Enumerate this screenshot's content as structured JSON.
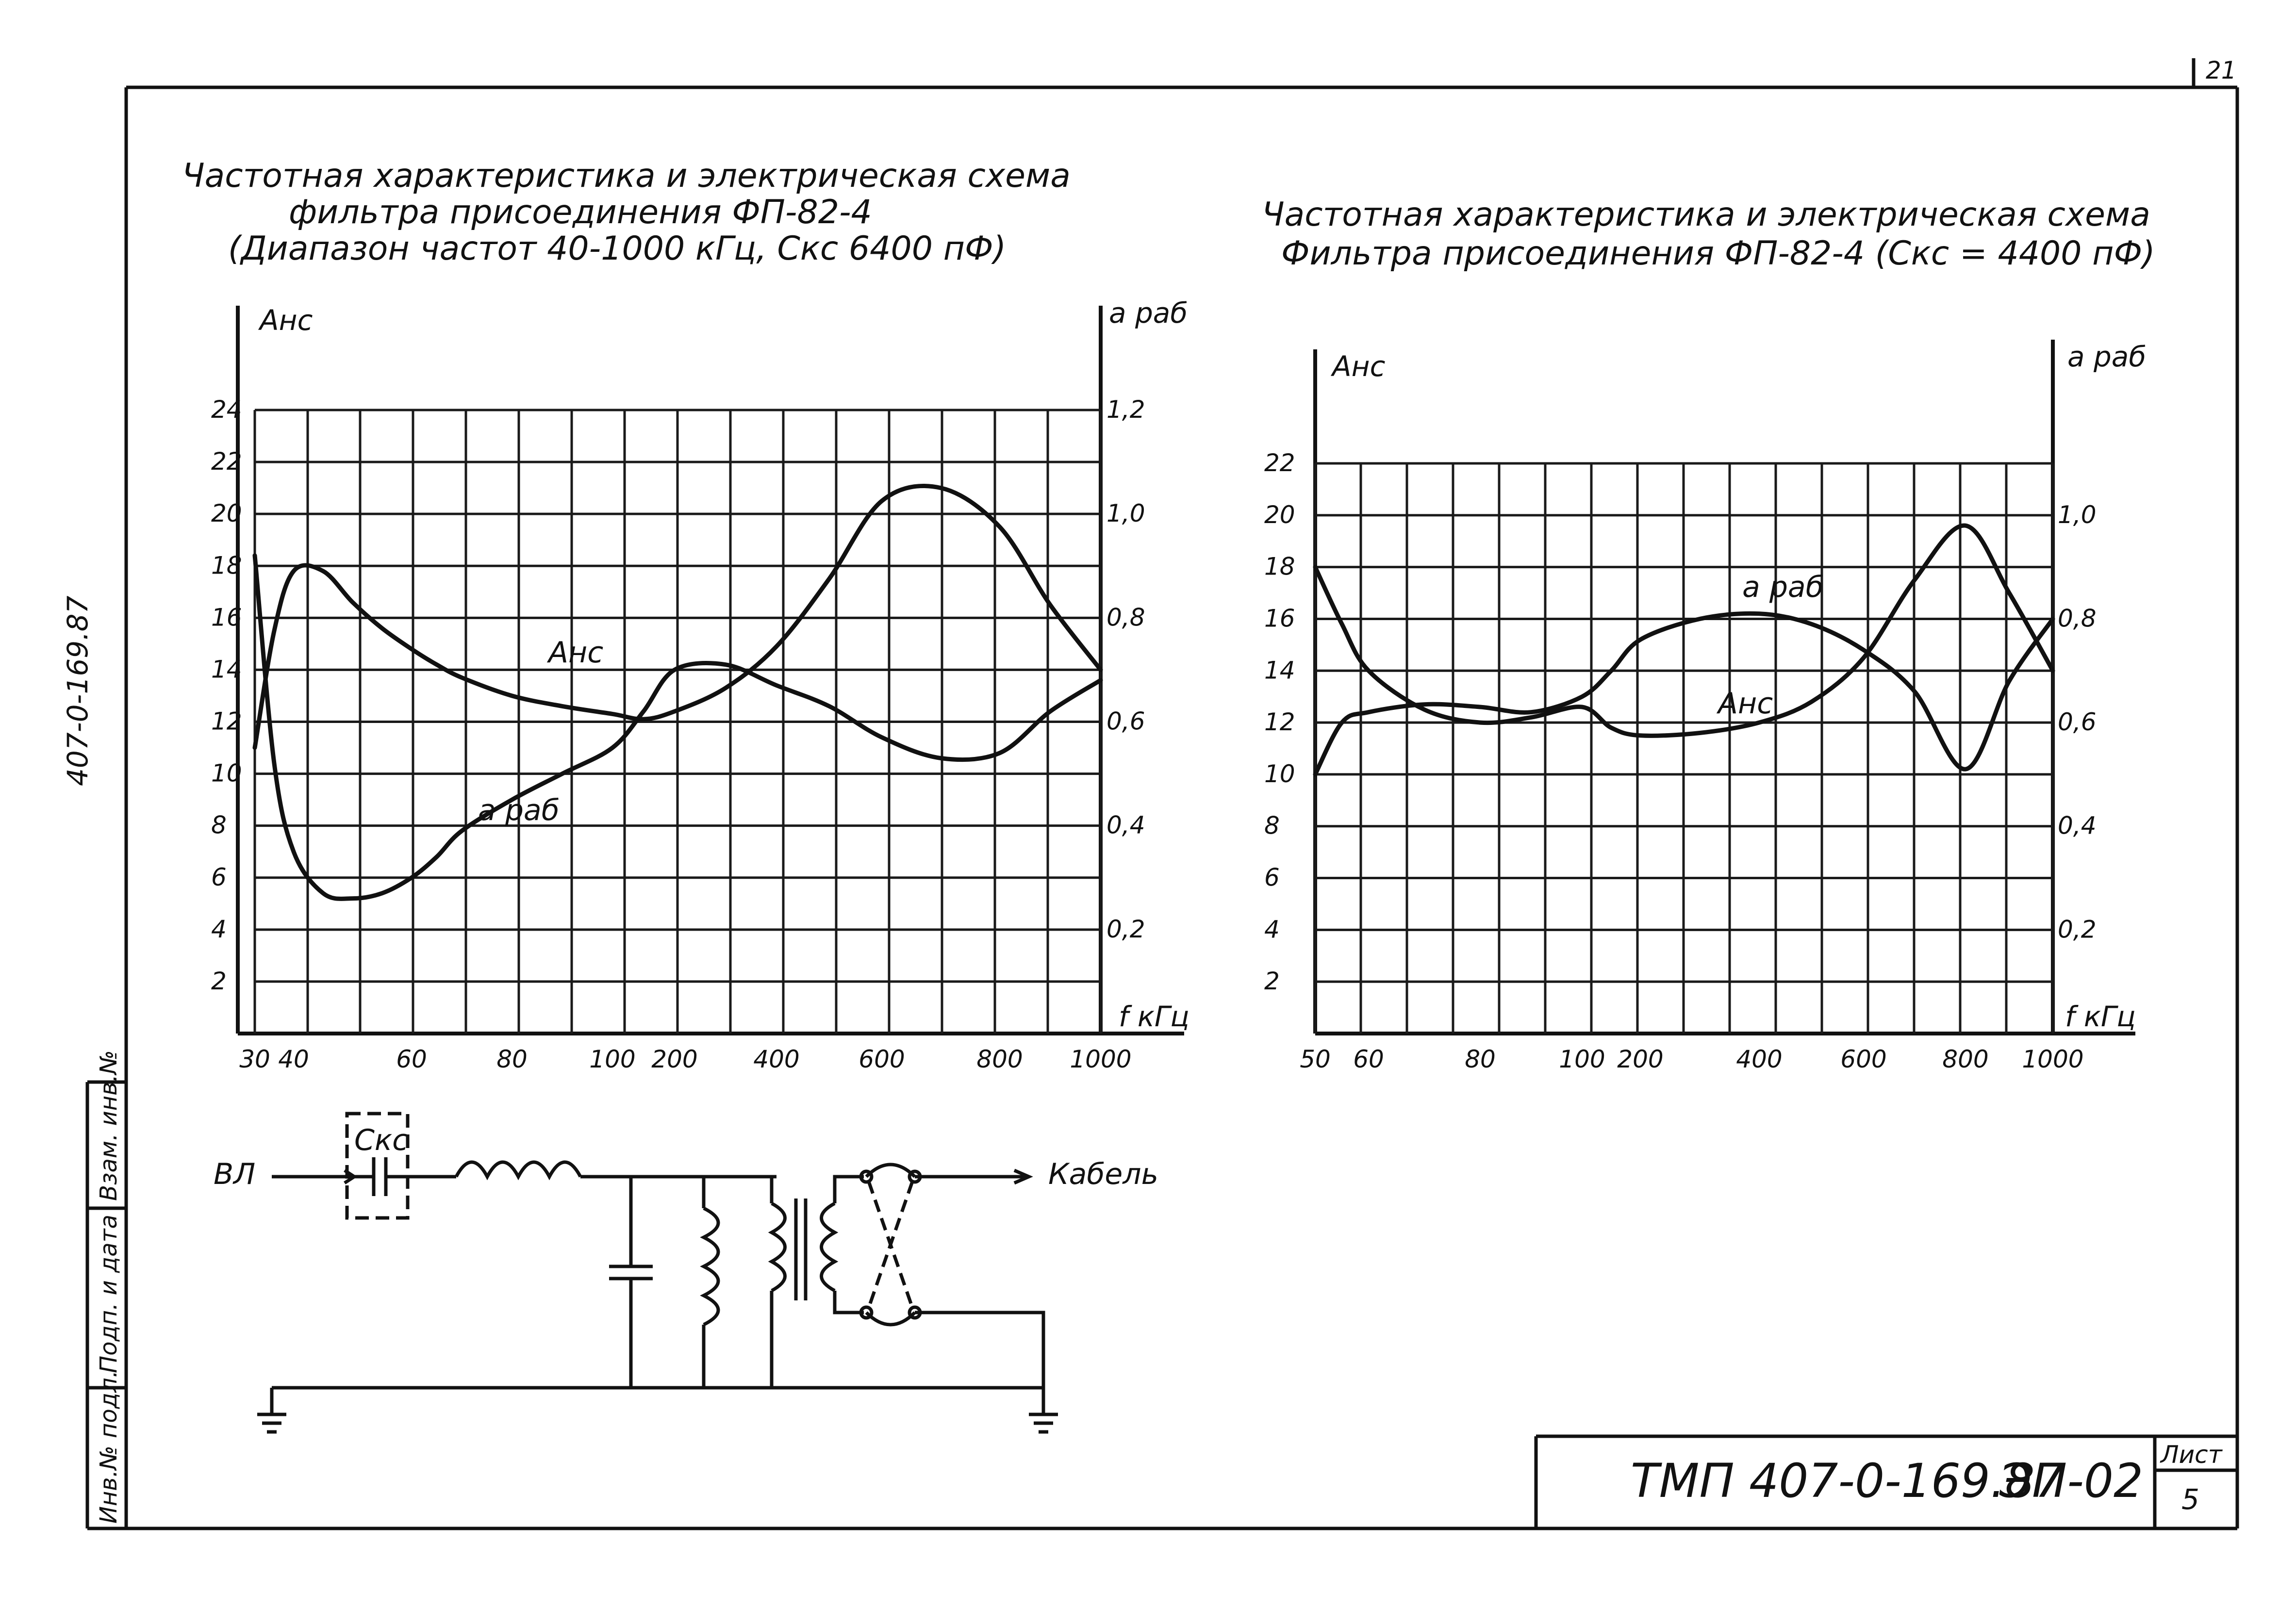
{
  "drawing": {
    "sheet_number_corner": "21",
    "side_code": "407-0-169.87",
    "side_stamps": [
      "Инв.№ подл.",
      "Подп. и дата",
      "Взам. инв.№"
    ],
    "title_block": {
      "code": "ТМП 407-0-169.87",
      "mark": "ЭП-02",
      "sheet_label": "Лист",
      "sheet_number": "5"
    }
  },
  "colors": {
    "ink": "#111111",
    "paper": "#ffffff"
  },
  "chart_data": [
    {
      "type": "line",
      "title_lines": [
        "Частотная характеристика и электрическая схема",
        "фильтра присоединения ФП-82-4",
        "(Диапазон частот 40-1000 кГц, Скс 6400 пФ)"
      ],
      "ylabel_left": "Анс",
      "ylabel_right": "a раб",
      "xlabel": "f кГц",
      "x_ticks": [
        "30",
        "40",
        "60",
        "80",
        "100",
        "200",
        "400",
        "600",
        "800",
        "1000"
      ],
      "y_left_ticks": [
        "2",
        "4",
        "6",
        "8",
        "10",
        "12",
        "14",
        "16",
        "18",
        "20",
        "22",
        "24"
      ],
      "y_right_ticks": [
        "0,2",
        "0,4",
        "0,6",
        "0,8",
        "1,0",
        "1,2"
      ],
      "ylim_left": [
        0,
        24
      ],
      "ylim_right": [
        0,
        1.2
      ],
      "grid": true,
      "series": [
        {
          "name": "Анс",
          "axis": "left",
          "x": [
            "30",
            "35",
            "40",
            "45",
            "50",
            "55",
            "60",
            "65",
            "70",
            "80",
            "90",
            "100",
            "150",
            "200",
            "300",
            "400",
            "500",
            "600",
            "700",
            "800",
            "900",
            "1000"
          ],
          "y": [
            11.0,
            15.5,
            17.8,
            17.8,
            16.6,
            15.6,
            14.8,
            14.2,
            13.7,
            13.0,
            12.6,
            12.3,
            12.1,
            12.4,
            13.3,
            14.9,
            17.5,
            20.5,
            21.0,
            19.5,
            16.5,
            14.0
          ]
        },
        {
          "name": "a раб",
          "axis": "right",
          "x": [
            "30",
            "35",
            "40",
            "45",
            "50",
            "55",
            "60",
            "65",
            "70",
            "80",
            "90",
            "100",
            "150",
            "200",
            "300",
            "400",
            "500",
            "600",
            "700",
            "800",
            "900",
            "1000"
          ],
          "y": [
            0.92,
            0.52,
            0.35,
            0.27,
            0.26,
            0.27,
            0.3,
            0.34,
            0.39,
            0.45,
            0.5,
            0.55,
            0.62,
            0.7,
            0.71,
            0.67,
            0.63,
            0.57,
            0.53,
            0.54,
            0.62,
            0.68
          ]
        }
      ],
      "annotations": [
        "Анс",
        "a раб"
      ]
    },
    {
      "type": "line",
      "title_lines": [
        "Частотная характеристика и электрическая схема",
        "Фильтра присоединения ФП-82-4 (Скс = 4400 пФ)"
      ],
      "ylabel_left": "Анс",
      "ylabel_right": "a раб",
      "xlabel": "f кГц",
      "x_ticks": [
        "50",
        "60",
        "80",
        "100",
        "200",
        "400",
        "600",
        "800",
        "1000"
      ],
      "y_left_ticks": [
        "2",
        "4",
        "6",
        "8",
        "10",
        "12",
        "14",
        "16",
        "18",
        "20",
        "22"
      ],
      "y_right_ticks": [
        "0,2",
        "0,4",
        "0,6",
        "0,8",
        "1,0"
      ],
      "ylim_left": [
        0,
        22
      ],
      "ylim_right": [
        0,
        1.1
      ],
      "grid": true,
      "series": [
        {
          "name": "Анс",
          "axis": "left",
          "x": [
            "50",
            "55",
            "60",
            "70",
            "80",
            "90",
            "100",
            "150",
            "200",
            "300",
            "400",
            "500",
            "600",
            "700",
            "800",
            "900",
            "1000"
          ],
          "y": [
            18.0,
            15.8,
            14.0,
            12.5,
            12.0,
            12.2,
            12.6,
            11.8,
            11.5,
            11.6,
            12.0,
            12.8,
            14.5,
            17.5,
            19.6,
            17.0,
            14.0
          ]
        },
        {
          "name": "a раб",
          "axis": "right",
          "x": [
            "50",
            "55",
            "60",
            "70",
            "80",
            "90",
            "100",
            "150",
            "200",
            "300",
            "400",
            "500",
            "600",
            "700",
            "800",
            "900",
            "1000"
          ],
          "y": [
            0.5,
            0.6,
            0.62,
            0.635,
            0.63,
            0.62,
            0.65,
            0.7,
            0.76,
            0.8,
            0.81,
            0.79,
            0.74,
            0.66,
            0.51,
            0.68,
            0.8
          ]
        }
      ],
      "annotations": [
        "a раб",
        "Анс"
      ]
    }
  ],
  "schematic": {
    "left_label": "ВЛ",
    "right_label": "Кабель",
    "capacitor_label": "Скс"
  }
}
